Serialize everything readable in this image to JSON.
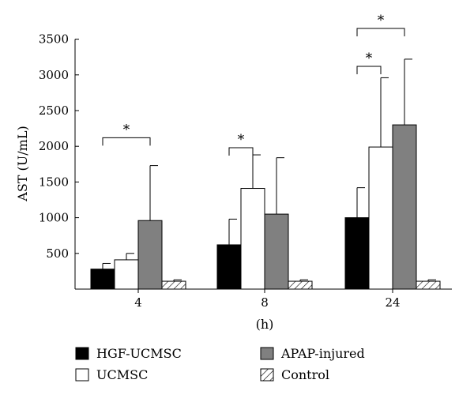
{
  "chart_data": {
    "type": "bar",
    "ylabel": "AST (U/mL)",
    "xlabel": "(h)",
    "categories": [
      "4",
      "8",
      "24"
    ],
    "ylim": [
      0,
      3500
    ],
    "yticks": [
      500,
      1000,
      1500,
      2000,
      2500,
      3000,
      3500
    ],
    "grid": false,
    "legend_position": "bottom",
    "series": [
      {
        "name": "HGF-UCMSC",
        "fill": "#000000",
        "pattern": "solid",
        "values": [
          280,
          620,
          1000
        ],
        "errors": [
          80,
          360,
          420
        ]
      },
      {
        "name": "UCMSC",
        "fill": "#ffffff",
        "pattern": "solid",
        "values": [
          410,
          1410,
          1990
        ],
        "errors": [
          90,
          470,
          970
        ]
      },
      {
        "name": "APAP-injured",
        "fill": "#808080",
        "pattern": "solid",
        "values": [
          960,
          1050,
          2300
        ],
        "errors": [
          770,
          790,
          920
        ]
      },
      {
        "name": "Control",
        "fill": "#ffffff",
        "pattern": "hatched",
        "values": [
          110,
          110,
          110
        ],
        "errors": [
          20,
          20,
          20
        ]
      }
    ],
    "significance": [
      {
        "category": "4",
        "from_series": 0,
        "to_series": 2,
        "label": "*",
        "level": 2120
      },
      {
        "category": "8",
        "from_series": 0,
        "to_series": 1,
        "label": "*",
        "level": 1980
      },
      {
        "category": "24",
        "from_series": 0,
        "to_series": 1,
        "label": "*",
        "level": 3120
      },
      {
        "category": "24",
        "from_series": 0,
        "to_series": 2,
        "label": "*",
        "level": 3650
      }
    ]
  }
}
